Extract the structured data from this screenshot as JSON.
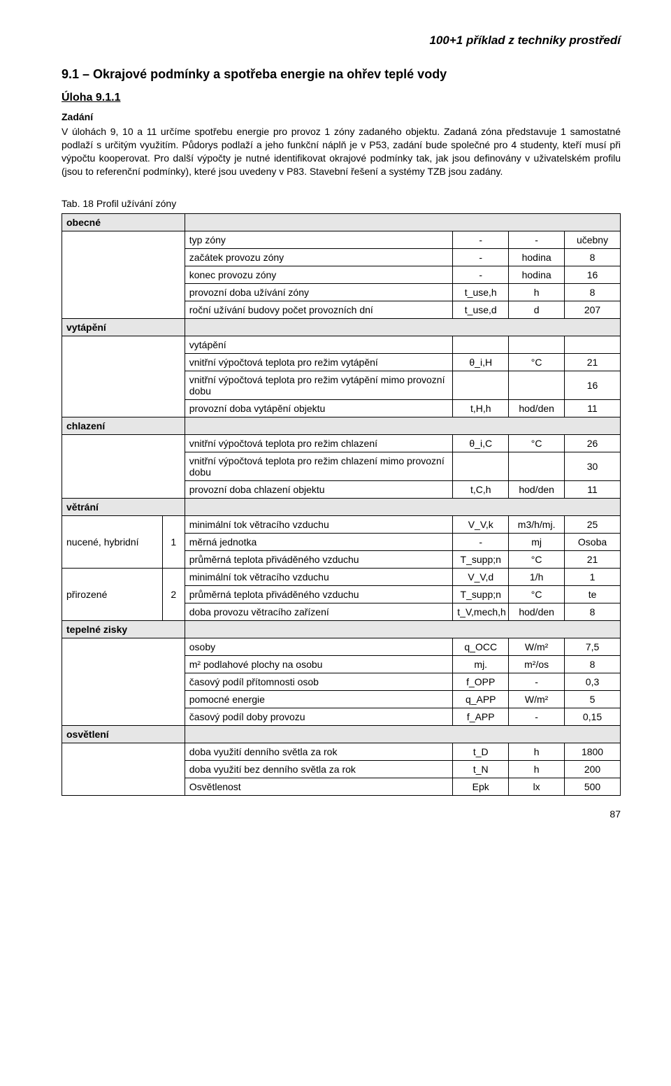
{
  "running_head": "100+1 příklad z techniky prostředí",
  "section_title": "9.1 – Okrajové podmínky a spotřeba energie na ohřev teplé vody",
  "task_title": "Úloha 9.1.1",
  "assign_label": "Zadání",
  "body_text": "V úlohách 9, 10 a 11 určíme spotřebu energie pro provoz 1 zóny zadaného objektu. Zadaná zóna představuje 1 samostatné podlaží s určitým využitím. Půdorys podlaží a jeho funkční náplň je v P53, zadání bude společné pro 4 studenty, kteří musí při výpočtu kooperovat. Pro další výpočty je nutné identifikovat okrajové podmínky tak, jak jsou definovány v uživatelském profilu (jsou to referenční podmínky), které jsou uvedeny v P83. Stavební řešení a systémy TZB jsou zadány.",
  "table_caption": "Tab. 18 Profil užívání zóny",
  "groups": {
    "obecne": "obecné",
    "vytapeni": "vytápění",
    "chlazeni": "chlazení",
    "vetrani": "větrání",
    "tepelne": "tepelné zisky",
    "osvetleni": "osvětlení"
  },
  "sub_labels": {
    "nucene": "nucené, hybridní",
    "nucene_num": "1",
    "prirozene": "přirozené",
    "prirozene_num": "2"
  },
  "rows": {
    "typ_zony": {
      "desc": "typ zóny",
      "sym": "-",
      "unit": "-",
      "val": "učebny"
    },
    "zacatek": {
      "desc": "začátek provozu zóny",
      "sym": "-",
      "unit": "hodina",
      "val": "8"
    },
    "konec": {
      "desc": "konec provozu zóny",
      "sym": "-",
      "unit": "hodina",
      "val": "16"
    },
    "prov_doba": {
      "desc": "provozní doba užívání zóny",
      "sym": "t_use,h",
      "unit": "h",
      "val": "8"
    },
    "rocni": {
      "desc": "roční užívání budovy počet provozních dní",
      "sym": "t_use,d",
      "unit": "d",
      "val": "207"
    },
    "vytap_hdr": {
      "desc": "vytápění"
    },
    "vn_vt": {
      "desc": "vnitřní výpočtová teplota pro režim vytápění",
      "sym": "θ_i,H",
      "unit": "°C",
      "val": "21"
    },
    "vn_vt_mimo": {
      "desc": "vnitřní výpočtová teplota pro režim vytápění mimo provozní dobu",
      "sym": "",
      "unit": "",
      "val": "16"
    },
    "prov_vt": {
      "desc": "provozní doba vytápění objektu",
      "sym": "t,H,h",
      "unit": "hod/den",
      "val": "11"
    },
    "vn_ch": {
      "desc": "vnitřní výpočtová teplota pro režim chlazení",
      "sym": "θ_i,C",
      "unit": "°C",
      "val": "26"
    },
    "vn_ch_mimo": {
      "desc": "vnitřní výpočtová teplota pro režim chlazení mimo provozní dobu",
      "sym": "",
      "unit": "",
      "val": "30"
    },
    "prov_ch": {
      "desc": "provozní doba chlazení objektu",
      "sym": "t,C,h",
      "unit": "hod/den",
      "val": "11"
    },
    "min_tok_k": {
      "desc": "minimální tok větracího vzduchu",
      "sym": "V_V,k",
      "unit": "m3/h/mj.",
      "val": "25"
    },
    "merna": {
      "desc": "měrná jednotka",
      "sym": "-",
      "unit": "mj",
      "val": "Osoba"
    },
    "prum_t_n": {
      "desc": "průměrná teplota přiváděného vzduchu",
      "sym": "T_supp;n",
      "unit": "°C",
      "val": "21"
    },
    "min_tok_d": {
      "desc": "minimální tok větracího vzduchu",
      "sym": "V_V,d",
      "unit": "1/h",
      "val": "1"
    },
    "prum_t_n2": {
      "desc": "průměrná teplota přiváděného vzduchu",
      "sym": "T_supp;n",
      "unit": "°C",
      "val": "te"
    },
    "doba_v": {
      "desc": "doba provozu větracího zařízení",
      "sym": "t_V,mech,h",
      "unit": "hod/den",
      "val": "8"
    },
    "osoby": {
      "desc": "osoby",
      "sym": "q_OCC",
      "unit": "W/m²",
      "val": "7,5"
    },
    "m2os": {
      "desc": "m² podlahové plochy na osobu",
      "sym": "mj.",
      "unit": "m²/os",
      "val": "8"
    },
    "cas_os": {
      "desc": "časový podíl přítomnosti osob",
      "sym": "f_OPP",
      "unit": "-",
      "val": "0,3"
    },
    "pomoc": {
      "desc": "pomocné energie",
      "sym": "q_APP",
      "unit": "W/m²",
      "val": "5"
    },
    "cas_pr": {
      "desc": "časový podíl doby provozu",
      "sym": "f_APP",
      "unit": "-",
      "val": "0,15"
    },
    "den_sv": {
      "desc": "doba využití denního světla za rok",
      "sym": "t_D",
      "unit": "h",
      "val": "1800"
    },
    "bez_sv": {
      "desc": "doba využití bez denního světla za rok",
      "sym": "t_N",
      "unit": "h",
      "val": "200"
    },
    "osvet": {
      "desc": "Osvětlenost",
      "sym": "Epk",
      "unit": "lx",
      "val": "500"
    }
  },
  "page_num": "87"
}
